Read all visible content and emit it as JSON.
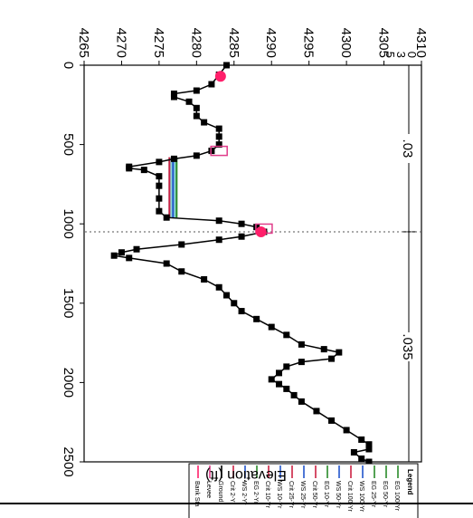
{
  "chart_data": {
    "type": "line",
    "title": "",
    "xlabel": "",
    "ylabel": "Elevation (ft)",
    "xlim": [
      0,
      2500
    ],
    "ylim": [
      4265,
      4310
    ],
    "x_ticks": [
      "0",
      "500",
      "1000",
      "1500",
      "2000",
      "2500"
    ],
    "y_ticks": [
      "4265",
      "4270",
      "4275",
      "4280",
      "4285",
      "4290",
      "4295",
      "4300",
      "4305",
      "4310"
    ],
    "extra_y_ticks": [
      "0",
      "3",
      "5"
    ],
    "manning_n": [
      {
        "label": ".03",
        "x_from": 0,
        "x_to": 1050
      },
      {
        "label": ".035",
        "x_from": 1050,
        "x_to": 2500
      }
    ],
    "legend": {
      "title": "Legend",
      "entries": [
        "EG 100-Yr",
        "EG 50-Yr",
        "EG 25-Yr",
        "WS 100-Yr",
        "Crit 100-Yr",
        "WS 50-Yr",
        "EG 10-Yr",
        "Crit 50-Yr",
        "WS 25-Yr",
        "Crit 25-Yr",
        "WS 10-Yr",
        "Crit 10-Yr",
        "EG 2-Yr",
        "WS 2-Yr",
        "Crit 2-Yr",
        "Ground",
        "Levee",
        "Bank Sta"
      ]
    },
    "ground": [
      [
        0,
        4284
      ],
      [
        60,
        4283
      ],
      [
        120,
        4282
      ],
      [
        160,
        4280
      ],
      [
        180,
        4277
      ],
      [
        200,
        4277
      ],
      [
        230,
        4279
      ],
      [
        270,
        4280
      ],
      [
        320,
        4280
      ],
      [
        360,
        4281
      ],
      [
        400,
        4283
      ],
      [
        450,
        4283
      ],
      [
        500,
        4283
      ],
      [
        540,
        4282
      ],
      [
        570,
        4280
      ],
      [
        590,
        4277
      ],
      [
        610,
        4275
      ],
      [
        640,
        4271
      ],
      [
        650,
        4271
      ],
      [
        660,
        4273
      ],
      [
        700,
        4275
      ],
      [
        760,
        4275
      ],
      [
        840,
        4275
      ],
      [
        920,
        4275
      ],
      [
        960,
        4276
      ],
      [
        980,
        4283
      ],
      [
        1000,
        4286
      ],
      [
        1020,
        4288
      ],
      [
        1050,
        4289
      ],
      [
        1080,
        4286
      ],
      [
        1100,
        4283
      ],
      [
        1130,
        4278
      ],
      [
        1160,
        4272
      ],
      [
        1180,
        4270
      ],
      [
        1200,
        4269
      ],
      [
        1215,
        4271
      ],
      [
        1250,
        4276
      ],
      [
        1300,
        4278
      ],
      [
        1350,
        4281
      ],
      [
        1400,
        4283
      ],
      [
        1450,
        4284
      ],
      [
        1500,
        4285
      ],
      [
        1550,
        4286
      ],
      [
        1600,
        4288
      ],
      [
        1650,
        4290
      ],
      [
        1700,
        4292
      ],
      [
        1760,
        4294
      ],
      [
        1790,
        4297
      ],
      [
        1810,
        4299
      ],
      [
        1850,
        4298
      ],
      [
        1870,
        4294
      ],
      [
        1900,
        4292
      ],
      [
        1940,
        4291
      ],
      [
        1980,
        4290
      ],
      [
        2010,
        4291
      ],
      [
        2040,
        4292
      ],
      [
        2080,
        4293
      ],
      [
        2120,
        4294
      ],
      [
        2180,
        4296
      ],
      [
        2240,
        4298
      ],
      [
        2300,
        4300
      ],
      [
        2360,
        4302
      ],
      [
        2390,
        4303
      ],
      [
        2420,
        4303
      ],
      [
        2440,
        4301
      ],
      [
        2480,
        4302
      ],
      [
        2500,
        4303
      ]
    ],
    "ws_level": 4276.5,
    "ws_x": [
      580,
      960
    ],
    "bank_stations": [
      [
        70,
        4283.2
      ],
      [
        1050,
        4288.6
      ]
    ],
    "levees": [
      [
        540,
        4283
      ],
      [
        1030,
        4289
      ]
    ]
  }
}
